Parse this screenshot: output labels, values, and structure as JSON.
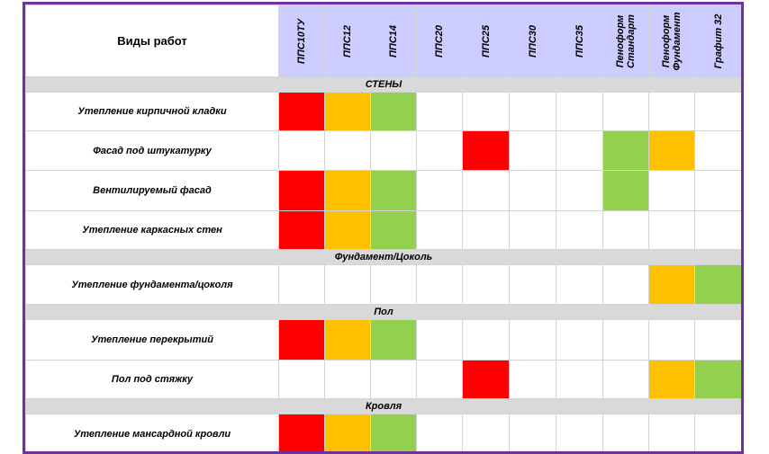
{
  "header": {
    "work_label": "Виды работ",
    "products": [
      "ППС10ТУ",
      "ППС12",
      "ППС14",
      "ППС20",
      "ППС25",
      "ППС30",
      "ППС35",
      "Пенoформ\nСтандарт",
      "Пеноформ\nФундамент",
      "Графит 32"
    ]
  },
  "colors": {
    "red": "#ff0000",
    "orange": "#ffc000",
    "green": "#92d050",
    "header_bg": "#ccccff",
    "section_bg": "#d9d9d9",
    "frame": "#7030a0"
  },
  "sections": [
    {
      "title": "СТЕНЫ",
      "rows": [
        {
          "label": "Утепление кирпичной кладки",
          "cells": [
            "red",
            "orange",
            "green",
            "",
            "",
            "",
            "",
            "",
            "",
            ""
          ]
        },
        {
          "label": "Фасад под штукатурку",
          "cells": [
            "",
            "",
            "",
            "",
            "red",
            "",
            "",
            "green",
            "orange",
            ""
          ]
        },
        {
          "label": "Вентилируемый фасад",
          "cells": [
            "red",
            "orange",
            "green",
            "",
            "",
            "",
            "",
            "green",
            "",
            ""
          ]
        },
        {
          "label": "Утепление каркасных стен",
          "cells": [
            "red",
            "orange",
            "green",
            "",
            "",
            "",
            "",
            "",
            "",
            ""
          ]
        }
      ]
    },
    {
      "title": "Фундамент/Цоколь",
      "rows": [
        {
          "label": "Утепление фундамента/цоколя",
          "cells": [
            "",
            "",
            "",
            "",
            "",
            "",
            "",
            "",
            "orange",
            "green"
          ]
        }
      ]
    },
    {
      "title": "Пол",
      "rows": [
        {
          "label": "Утепление перекрытий",
          "cells": [
            "red",
            "orange",
            "green",
            "",
            "",
            "",
            "",
            "",
            "",
            ""
          ]
        },
        {
          "label": "Пол под стяжку",
          "cells": [
            "",
            "",
            "",
            "",
            "red",
            "",
            "",
            "",
            "orange",
            "green"
          ]
        }
      ]
    },
    {
      "title": "Кровля",
      "rows": [
        {
          "label": "Утепление мансардной кровли",
          "cells": [
            "red",
            "orange",
            "green",
            "",
            "",
            "",
            "",
            "",
            "",
            ""
          ]
        }
      ]
    }
  ]
}
